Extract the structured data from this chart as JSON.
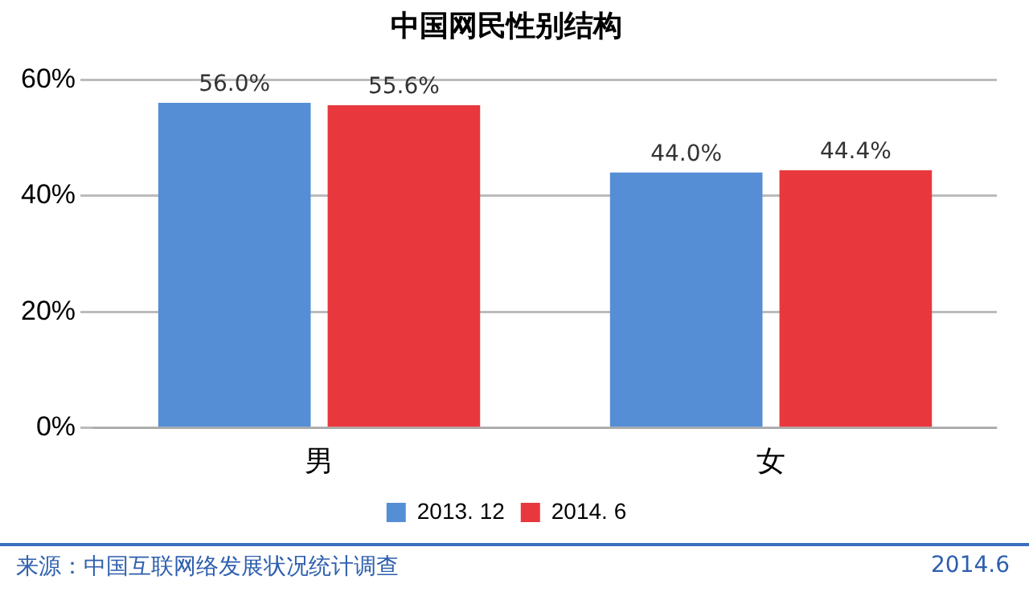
{
  "chart_data": {
    "type": "bar",
    "title": "中国网民性别结构",
    "categories": [
      "男",
      "女"
    ],
    "series": [
      {
        "name": "2013. 12",
        "color": "#558ed5",
        "values": [
          56.0,
          44.0
        ],
        "value_labels": [
          "56.0%",
          "44.0%"
        ]
      },
      {
        "name": "2014. 6",
        "color": "#e8383d",
        "values": [
          55.6,
          44.4
        ],
        "value_labels": [
          "55.6%",
          "44.4%"
        ]
      }
    ],
    "ylim": [
      0,
      60
    ],
    "yticks": [
      {
        "value": 0,
        "label": "0%"
      },
      {
        "value": 20,
        "label": "20%"
      },
      {
        "value": 40,
        "label": "40%"
      },
      {
        "value": 60,
        "label": "60%"
      }
    ],
    "grid": "y",
    "legend": "bottom",
    "annotations": [
      "来源：中国互联网络发展状况统计调查",
      "2014.6"
    ]
  }
}
